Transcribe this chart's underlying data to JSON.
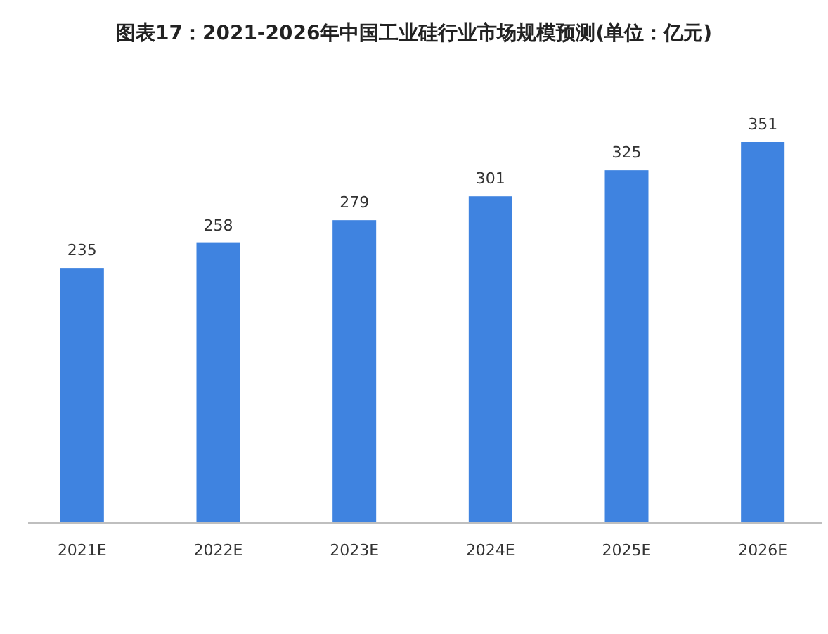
{
  "chart_data": {
    "type": "bar",
    "title": "图表17：2021-2026年中国工业硅行业市场规模预测(单位：亿元)",
    "categories": [
      "2021E",
      "2022E",
      "2023E",
      "2024E",
      "2025E",
      "2026E"
    ],
    "values": [
      235,
      258,
      279,
      301,
      325,
      351
    ],
    "color": "#3f83e0",
    "data_labels": true
  }
}
